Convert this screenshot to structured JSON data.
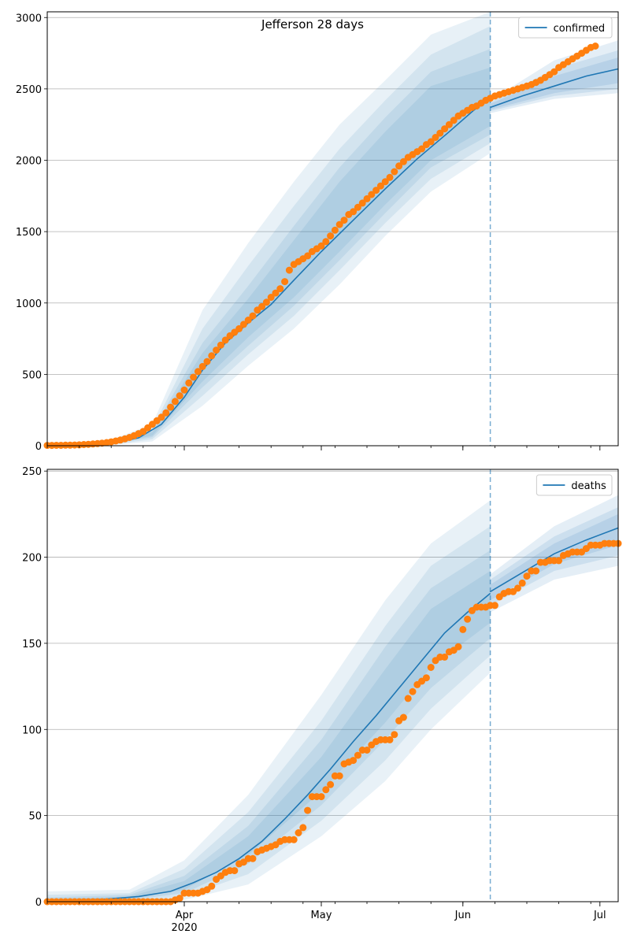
{
  "title": "Jefferson 28 days",
  "colors": {
    "model": "#1f77b4",
    "observed": "#ff7f0e",
    "band": "#1f77b4",
    "grid": "#b0b0b0",
    "forecast_line": "#1f77b4"
  },
  "x_axis": {
    "start": "2020-03-02",
    "end": "2020-07-05",
    "ticks": [
      {
        "date": "2020-04-01",
        "label": "Apr",
        "sublabel": "2020"
      },
      {
        "date": "2020-05-01",
        "label": "May",
        "sublabel": ""
      },
      {
        "date": "2020-06-01",
        "label": "Jun",
        "sublabel": ""
      },
      {
        "date": "2020-07-01",
        "label": "Jul",
        "sublabel": ""
      }
    ]
  },
  "chart_data": [
    {
      "type": "line",
      "panel": "top",
      "legend": "confirmed",
      "legend_placement": "upper right",
      "grid": "horizontal",
      "ylim": [
        0,
        3040
      ],
      "yticks": [
        0,
        500,
        1000,
        1500,
        2000,
        2500,
        3000
      ],
      "forecast_date": "2020-06-07",
      "model": [
        {
          "x": "2020-03-02",
          "y": 5
        },
        {
          "x": "2020-03-10",
          "y": 8
        },
        {
          "x": "2020-03-17",
          "y": 22
        },
        {
          "x": "2020-03-22",
          "y": 55
        },
        {
          "x": "2020-03-27",
          "y": 150
        },
        {
          "x": "2020-04-01",
          "y": 340
        },
        {
          "x": "2020-04-05",
          "y": 530
        },
        {
          "x": "2020-04-10",
          "y": 720
        },
        {
          "x": "2020-04-15",
          "y": 860
        },
        {
          "x": "2020-04-20",
          "y": 990
        },
        {
          "x": "2020-04-25",
          "y": 1160
        },
        {
          "x": "2020-05-01",
          "y": 1360
        },
        {
          "x": "2020-05-08",
          "y": 1580
        },
        {
          "x": "2020-05-15",
          "y": 1800
        },
        {
          "x": "2020-05-22",
          "y": 2010
        },
        {
          "x": "2020-05-29",
          "y": 2200
        },
        {
          "x": "2020-06-03",
          "y": 2340
        },
        {
          "x": "2020-06-07",
          "y": 2445
        }
      ],
      "forecast": [
        {
          "x": "2020-06-07",
          "y": 2370
        },
        {
          "x": "2020-06-14",
          "y": 2450
        },
        {
          "x": "2020-06-21",
          "y": 2520
        },
        {
          "x": "2020-06-28",
          "y": 2590
        },
        {
          "x": "2020-07-05",
          "y": 2640
        }
      ],
      "bands": [
        [
          {
            "x": "2020-03-02",
            "lo": 0,
            "hi": 25
          },
          {
            "x": "2020-03-15",
            "lo": 2,
            "hi": 30
          },
          {
            "x": "2020-03-25",
            "lo": 30,
            "hi": 150
          },
          {
            "x": "2020-04-05",
            "lo": 280,
            "hi": 950
          },
          {
            "x": "2020-04-15",
            "lo": 560,
            "hi": 1420
          },
          {
            "x": "2020-04-25",
            "lo": 820,
            "hi": 1850
          },
          {
            "x": "2020-05-05",
            "lo": 1130,
            "hi": 2250
          },
          {
            "x": "2020-05-15",
            "lo": 1470,
            "hi": 2560
          },
          {
            "x": "2020-05-25",
            "lo": 1780,
            "hi": 2880
          },
          {
            "x": "2020-06-07",
            "lo": 2050,
            "hi": 3040
          }
        ],
        [
          {
            "x": "2020-03-02",
            "lo": 0,
            "hi": 18
          },
          {
            "x": "2020-03-15",
            "lo": 3,
            "hi": 25
          },
          {
            "x": "2020-03-25",
            "lo": 45,
            "hi": 120
          },
          {
            "x": "2020-04-05",
            "lo": 350,
            "hi": 820
          },
          {
            "x": "2020-04-15",
            "lo": 640,
            "hi": 1260
          },
          {
            "x": "2020-04-25",
            "lo": 910,
            "hi": 1680
          },
          {
            "x": "2020-05-05",
            "lo": 1230,
            "hi": 2080
          },
          {
            "x": "2020-05-15",
            "lo": 1560,
            "hi": 2420
          },
          {
            "x": "2020-05-25",
            "lo": 1870,
            "hi": 2740
          },
          {
            "x": "2020-06-07",
            "lo": 2120,
            "hi": 2940
          }
        ],
        [
          {
            "x": "2020-03-02",
            "lo": 0,
            "hi": 12
          },
          {
            "x": "2020-03-15",
            "lo": 5,
            "hi": 20
          },
          {
            "x": "2020-03-25",
            "lo": 60,
            "hi": 105
          },
          {
            "x": "2020-04-05",
            "lo": 410,
            "hi": 720
          },
          {
            "x": "2020-04-15",
            "lo": 700,
            "hi": 1120
          },
          {
            "x": "2020-04-25",
            "lo": 980,
            "hi": 1540
          },
          {
            "x": "2020-05-05",
            "lo": 1300,
            "hi": 1950
          },
          {
            "x": "2020-05-15",
            "lo": 1630,
            "hi": 2300
          },
          {
            "x": "2020-05-25",
            "lo": 1950,
            "hi": 2620
          },
          {
            "x": "2020-06-07",
            "lo": 2180,
            "hi": 2780
          }
        ],
        [
          {
            "x": "2020-03-02",
            "lo": 2,
            "hi": 9
          },
          {
            "x": "2020-03-15",
            "lo": 7,
            "hi": 16
          },
          {
            "x": "2020-03-25",
            "lo": 70,
            "hi": 95
          },
          {
            "x": "2020-04-05",
            "lo": 450,
            "hi": 650
          },
          {
            "x": "2020-04-15",
            "lo": 760,
            "hi": 1030
          },
          {
            "x": "2020-04-25",
            "lo": 1040,
            "hi": 1440
          },
          {
            "x": "2020-05-05",
            "lo": 1360,
            "hi": 1850
          },
          {
            "x": "2020-05-15",
            "lo": 1690,
            "hi": 2200
          },
          {
            "x": "2020-05-25",
            "lo": 2000,
            "hi": 2520
          },
          {
            "x": "2020-06-07",
            "lo": 2240,
            "hi": 2650
          }
        ]
      ],
      "forecast_bands": [
        [
          {
            "x": "2020-06-07",
            "lo": 2330,
            "hi": 2420
          },
          {
            "x": "2020-06-21",
            "lo": 2430,
            "hi": 2700
          },
          {
            "x": "2020-07-05",
            "lo": 2470,
            "hi": 2840
          }
        ],
        [
          {
            "x": "2020-06-07",
            "lo": 2345,
            "hi": 2405
          },
          {
            "x": "2020-06-21",
            "lo": 2450,
            "hi": 2640
          },
          {
            "x": "2020-07-05",
            "lo": 2500,
            "hi": 2770
          }
        ],
        [
          {
            "x": "2020-06-07",
            "lo": 2355,
            "hi": 2395
          },
          {
            "x": "2020-06-21",
            "lo": 2470,
            "hi": 2590
          },
          {
            "x": "2020-07-05",
            "lo": 2540,
            "hi": 2720
          }
        ]
      ],
      "observed": {
        "start": "2020-03-02",
        "values": [
          2,
          2,
          3,
          3,
          4,
          4,
          5,
          6,
          8,
          10,
          12,
          15,
          18,
          22,
          27,
          33,
          40,
          48,
          58,
          70,
          85,
          100,
          125,
          150,
          175,
          200,
          230,
          270,
          310,
          350,
          390,
          440,
          480,
          520,
          555,
          590,
          630,
          670,
          705,
          740,
          770,
          795,
          820,
          850,
          880,
          910,
          950,
          975,
          1005,
          1040,
          1070,
          1100,
          1150,
          1230,
          1270,
          1290,
          1310,
          1330,
          1360,
          1380,
          1400,
          1430,
          1470,
          1510,
          1550,
          1580,
          1620,
          1640,
          1670,
          1700,
          1730,
          1760,
          1790,
          1820,
          1850,
          1880,
          1920,
          1960,
          1990,
          2020,
          2040,
          2060,
          2080,
          2110,
          2130,
          2160,
          2190,
          2220,
          2250,
          2280,
          2310,
          2330,
          2350,
          2370,
          2380,
          2400,
          2420,
          2435,
          2450,
          2460,
          2470,
          2480,
          2490,
          2500,
          2510,
          2520,
          2530,
          2545,
          2560,
          2580,
          2600,
          2620,
          2650,
          2670,
          2690,
          2710,
          2730,
          2750,
          2770,
          2790,
          2800
        ]
      }
    },
    {
      "type": "line",
      "panel": "bottom",
      "legend": "deaths",
      "legend_placement": "upper right",
      "grid": "horizontal",
      "ylim": [
        0,
        251
      ],
      "yticks": [
        0,
        50,
        100,
        150,
        200,
        250
      ],
      "forecast_date": "2020-06-07",
      "model": [
        {
          "x": "2020-03-02",
          "y": 0.5
        },
        {
          "x": "2020-03-15",
          "y": 1.5
        },
        {
          "x": "2020-03-22",
          "y": 3
        },
        {
          "x": "2020-03-29",
          "y": 6
        },
        {
          "x": "2020-04-03",
          "y": 11
        },
        {
          "x": "2020-04-08",
          "y": 17
        },
        {
          "x": "2020-04-13",
          "y": 25
        },
        {
          "x": "2020-04-18",
          "y": 35
        },
        {
          "x": "2020-04-23",
          "y": 48
        },
        {
          "x": "2020-04-28",
          "y": 62
        },
        {
          "x": "2020-05-03",
          "y": 77
        },
        {
          "x": "2020-05-08",
          "y": 93
        },
        {
          "x": "2020-05-13",
          "y": 108
        },
        {
          "x": "2020-05-18",
          "y": 124
        },
        {
          "x": "2020-05-23",
          "y": 140
        },
        {
          "x": "2020-05-28",
          "y": 156
        },
        {
          "x": "2020-06-02",
          "y": 168
        },
        {
          "x": "2020-06-07",
          "y": 179
        }
      ],
      "forecast": [
        {
          "x": "2020-06-07",
          "y": 180
        },
        {
          "x": "2020-06-14",
          "y": 191
        },
        {
          "x": "2020-06-21",
          "y": 202
        },
        {
          "x": "2020-06-28",
          "y": 210
        },
        {
          "x": "2020-07-05",
          "y": 217
        }
      ],
      "bands": [
        [
          {
            "x": "2020-03-02",
            "lo": 0,
            "hi": 6
          },
          {
            "x": "2020-03-20",
            "lo": 0,
            "hi": 7
          },
          {
            "x": "2020-04-01",
            "lo": 1,
            "hi": 24
          },
          {
            "x": "2020-04-15",
            "lo": 10,
            "hi": 62
          },
          {
            "x": "2020-05-01",
            "lo": 38,
            "hi": 120
          },
          {
            "x": "2020-05-15",
            "lo": 70,
            "hi": 175
          },
          {
            "x": "2020-05-25",
            "lo": 100,
            "hi": 208
          },
          {
            "x": "2020-06-07",
            "lo": 133,
            "hi": 233
          }
        ],
        [
          {
            "x": "2020-03-02",
            "lo": 0,
            "hi": 4
          },
          {
            "x": "2020-03-20",
            "lo": 0.5,
            "hi": 5
          },
          {
            "x": "2020-04-01",
            "lo": 3,
            "hi": 19
          },
          {
            "x": "2020-04-15",
            "lo": 16,
            "hi": 52
          },
          {
            "x": "2020-05-01",
            "lo": 47,
            "hi": 105
          },
          {
            "x": "2020-05-15",
            "lo": 82,
            "hi": 160
          },
          {
            "x": "2020-05-25",
            "lo": 112,
            "hi": 195
          },
          {
            "x": "2020-06-07",
            "lo": 143,
            "hi": 218
          }
        ],
        [
          {
            "x": "2020-03-02",
            "lo": 0,
            "hi": 2.5
          },
          {
            "x": "2020-03-20",
            "lo": 1,
            "hi": 4
          },
          {
            "x": "2020-04-01",
            "lo": 5,
            "hi": 15
          },
          {
            "x": "2020-04-15",
            "lo": 22,
            "hi": 44
          },
          {
            "x": "2020-05-01",
            "lo": 56,
            "hi": 94
          },
          {
            "x": "2020-05-15",
            "lo": 94,
            "hi": 148
          },
          {
            "x": "2020-05-25",
            "lo": 124,
            "hi": 182
          },
          {
            "x": "2020-06-07",
            "lo": 153,
            "hi": 204
          }
        ],
        [
          {
            "x": "2020-03-02",
            "lo": 0.2,
            "hi": 1.5
          },
          {
            "x": "2020-03-20",
            "lo": 1.5,
            "hi": 3
          },
          {
            "x": "2020-04-01",
            "lo": 7,
            "hi": 12
          },
          {
            "x": "2020-04-15",
            "lo": 27,
            "hi": 38
          },
          {
            "x": "2020-05-01",
            "lo": 64,
            "hi": 84
          },
          {
            "x": "2020-05-15",
            "lo": 104,
            "hi": 135
          },
          {
            "x": "2020-05-25",
            "lo": 136,
            "hi": 170
          },
          {
            "x": "2020-06-07",
            "lo": 162,
            "hi": 192
          }
        ]
      ],
      "forecast_bands": [
        [
          {
            "x": "2020-06-07",
            "lo": 168,
            "hi": 190
          },
          {
            "x": "2020-06-21",
            "lo": 187,
            "hi": 218
          },
          {
            "x": "2020-07-05",
            "lo": 195,
            "hi": 236
          }
        ],
        [
          {
            "x": "2020-06-07",
            "lo": 172,
            "hi": 187
          },
          {
            "x": "2020-06-21",
            "lo": 192,
            "hi": 212
          },
          {
            "x": "2020-07-05",
            "lo": 201,
            "hi": 229
          }
        ],
        [
          {
            "x": "2020-06-07",
            "lo": 175,
            "hi": 184
          },
          {
            "x": "2020-06-21",
            "lo": 196,
            "hi": 208
          },
          {
            "x": "2020-07-05",
            "lo": 207,
            "hi": 225
          }
        ]
      ],
      "observed": {
        "start": "2020-03-02",
        "values": [
          0,
          0,
          0,
          0,
          0,
          0,
          0,
          0,
          0,
          0,
          0,
          0,
          0,
          0,
          0,
          0,
          0,
          0,
          0,
          0,
          0,
          0,
          0,
          0,
          0,
          0,
          0,
          0,
          1,
          2,
          5,
          5,
          5,
          5,
          6,
          7,
          9,
          13,
          15,
          17,
          18,
          18,
          22,
          23,
          25,
          25,
          29,
          30,
          31,
          32,
          33,
          35,
          36,
          36,
          36,
          40,
          43,
          53,
          61,
          61,
          61,
          65,
          68,
          73,
          73,
          80,
          81,
          82,
          85,
          88,
          88,
          91,
          93,
          94,
          94,
          94,
          97,
          105,
          107,
          118,
          122,
          126,
          128,
          130,
          136,
          140,
          142,
          142,
          145,
          146,
          148,
          158,
          164,
          169,
          171,
          171,
          171,
          172,
          172,
          177,
          179,
          180,
          180,
          182,
          185,
          189,
          192,
          192,
          197,
          197,
          198,
          198,
          198,
          201,
          202,
          203,
          203,
          203,
          205,
          207,
          207,
          207,
          208,
          208,
          208,
          208,
          209,
          209,
          211,
          212,
          212,
          212,
          212
        ]
      }
    }
  ]
}
